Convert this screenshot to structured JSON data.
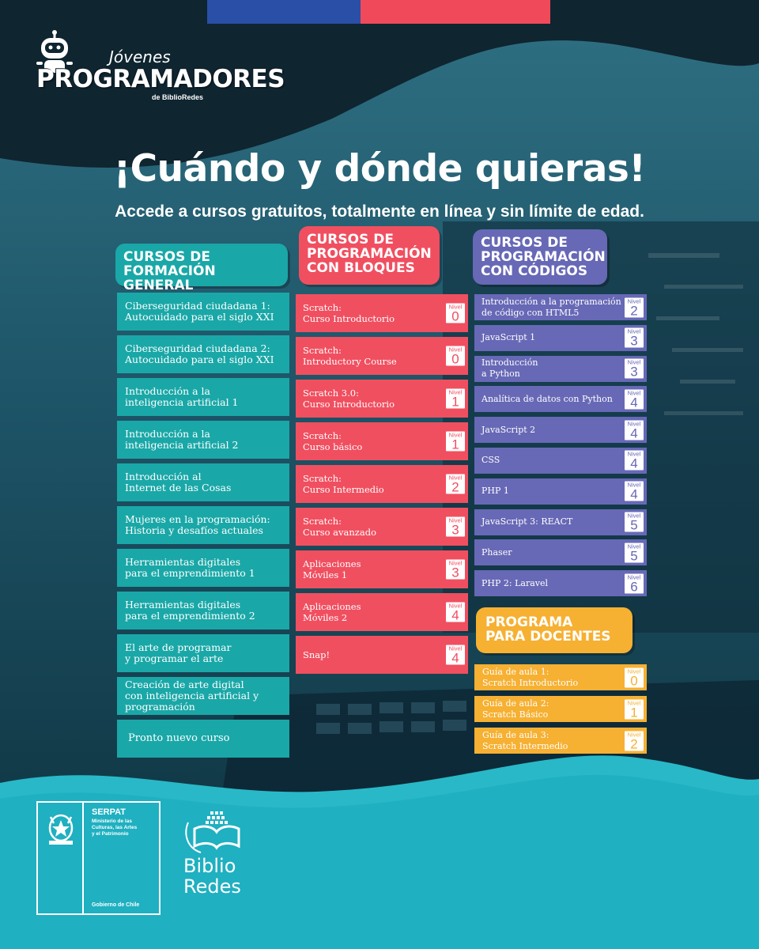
{
  "colors": {
    "teal": "#1aa7a7",
    "red": "#f04f60",
    "purple": "#6768b6",
    "yellow": "#f6b032",
    "dark": "#0f2530",
    "cyan": "#29b8c8"
  },
  "logo": {
    "small": "Jóvenes",
    "big": "PROGRAMADORES",
    "by": "de BiblioRedes"
  },
  "headline": "¡Cuándo y dónde quieras!",
  "subline": "Accede a cursos gratuitos, totalmente en línea y sin límite de edad.",
  "nivel_label": "Nivel",
  "general": {
    "heading": [
      "CURSOS DE",
      "FORMACIÓN GENERAL"
    ],
    "items": [
      [
        "Ciberseguridad ciudadana 1:",
        "Autocuidado para el siglo XXI"
      ],
      [
        "Ciberseguridad ciudadana 2:",
        "Autocuidado para el siglo XXI"
      ],
      [
        "Introducción a la",
        "inteligencia artificial 1"
      ],
      [
        "Introducción a la",
        "inteligencia artificial 2"
      ],
      [
        "Introducción al",
        "Internet de las Cosas"
      ],
      [
        "Mujeres en la programación:",
        "Historia y desafíos actuales"
      ],
      [
        "Herramientas digitales",
        "para el emprendimiento 1"
      ],
      [
        "Herramientas digitales",
        "para el emprendimiento 2"
      ],
      [
        "El arte de programar",
        "y programar el arte"
      ],
      [
        "Creación de arte digital",
        "con inteligencia artificial y",
        "programación"
      ],
      [
        "Pronto nuevo curso"
      ]
    ]
  },
  "bloques": {
    "heading": [
      "CURSOS DE",
      "PROGRAMACIÓN",
      "CON BLOQUES"
    ],
    "items": [
      {
        "lines": [
          "Scratch:",
          "Curso Introductorio"
        ],
        "nivel": "0"
      },
      {
        "lines": [
          "Scratch:",
          "Introductory Course"
        ],
        "nivel": "0"
      },
      {
        "lines": [
          "Scratch 3.0:",
          "Curso Introductorio"
        ],
        "nivel": "1"
      },
      {
        "lines": [
          "Scratch:",
          "Curso básico"
        ],
        "nivel": "1"
      },
      {
        "lines": [
          "Scratch:",
          "Curso Intermedio"
        ],
        "nivel": "2"
      },
      {
        "lines": [
          "Scratch:",
          "Curso avanzado"
        ],
        "nivel": "3"
      },
      {
        "lines": [
          "Aplicaciones",
          "Móviles 1"
        ],
        "nivel": "3"
      },
      {
        "lines": [
          "Aplicaciones",
          "Móviles 2"
        ],
        "nivel": "4"
      },
      {
        "lines": [
          "Snap!"
        ],
        "nivel": "4"
      }
    ]
  },
  "codigos": {
    "heading": [
      "CURSOS DE",
      "PROGRAMACIÓN",
      "CON CÓDIGOS"
    ],
    "items": [
      {
        "lines": [
          "Introducción a la programación",
          "de código con HTML5"
        ],
        "nivel": "2"
      },
      {
        "lines": [
          "JavaScript 1"
        ],
        "nivel": "3"
      },
      {
        "lines": [
          "Introducción",
          "a Python"
        ],
        "nivel": "3"
      },
      {
        "lines": [
          "Analítica de datos con Python"
        ],
        "nivel": "4"
      },
      {
        "lines": [
          "JavaScript 2"
        ],
        "nivel": "4"
      },
      {
        "lines": [
          "CSS"
        ],
        "nivel": "4"
      },
      {
        "lines": [
          "PHP 1"
        ],
        "nivel": "4"
      },
      {
        "lines": [
          "JavaScript 3: REACT"
        ],
        "nivel": "5"
      },
      {
        "lines": [
          "Phaser"
        ],
        "nivel": "5"
      },
      {
        "lines": [
          "PHP 2:  Laravel"
        ],
        "nivel": "6"
      }
    ]
  },
  "docentes": {
    "heading": [
      "PROGRAMA",
      "PARA DOCENTES"
    ],
    "items": [
      {
        "lines": [
          "Guía de aula 1:",
          "Scratch Introductorio"
        ],
        "nivel": "0"
      },
      {
        "lines": [
          "Guía de aula 2:",
          "Scratch Básico"
        ],
        "nivel": "1"
      },
      {
        "lines": [
          "Guía de aula 3:",
          "Scratch Intermedio"
        ],
        "nivel": "2"
      }
    ]
  },
  "footer": {
    "serpat_title": "SERPAT",
    "serpat_lines": [
      "Ministerio de las",
      "Culturas, las Artes",
      "y el Patrimonio"
    ],
    "gobierno": "Gobierno de Chile",
    "biblio": [
      "Biblio",
      "Redes"
    ]
  }
}
